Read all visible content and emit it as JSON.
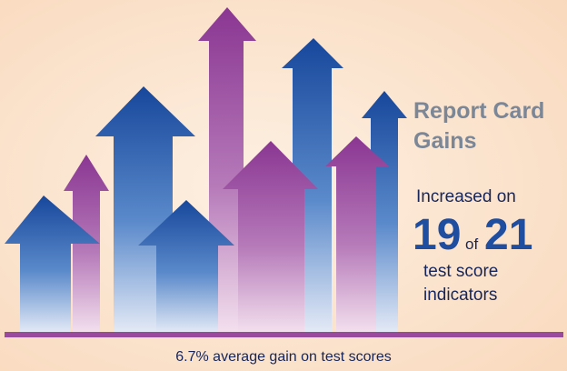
{
  "heading": {
    "line1": "Report Card",
    "line2": "Gains"
  },
  "stat": {
    "lead": "Increased on",
    "count": 19,
    "joiner": "of",
    "total": 21,
    "tail1": "test score",
    "tail2": "indicators"
  },
  "footer": "6.7% average gain on test scores"
}
